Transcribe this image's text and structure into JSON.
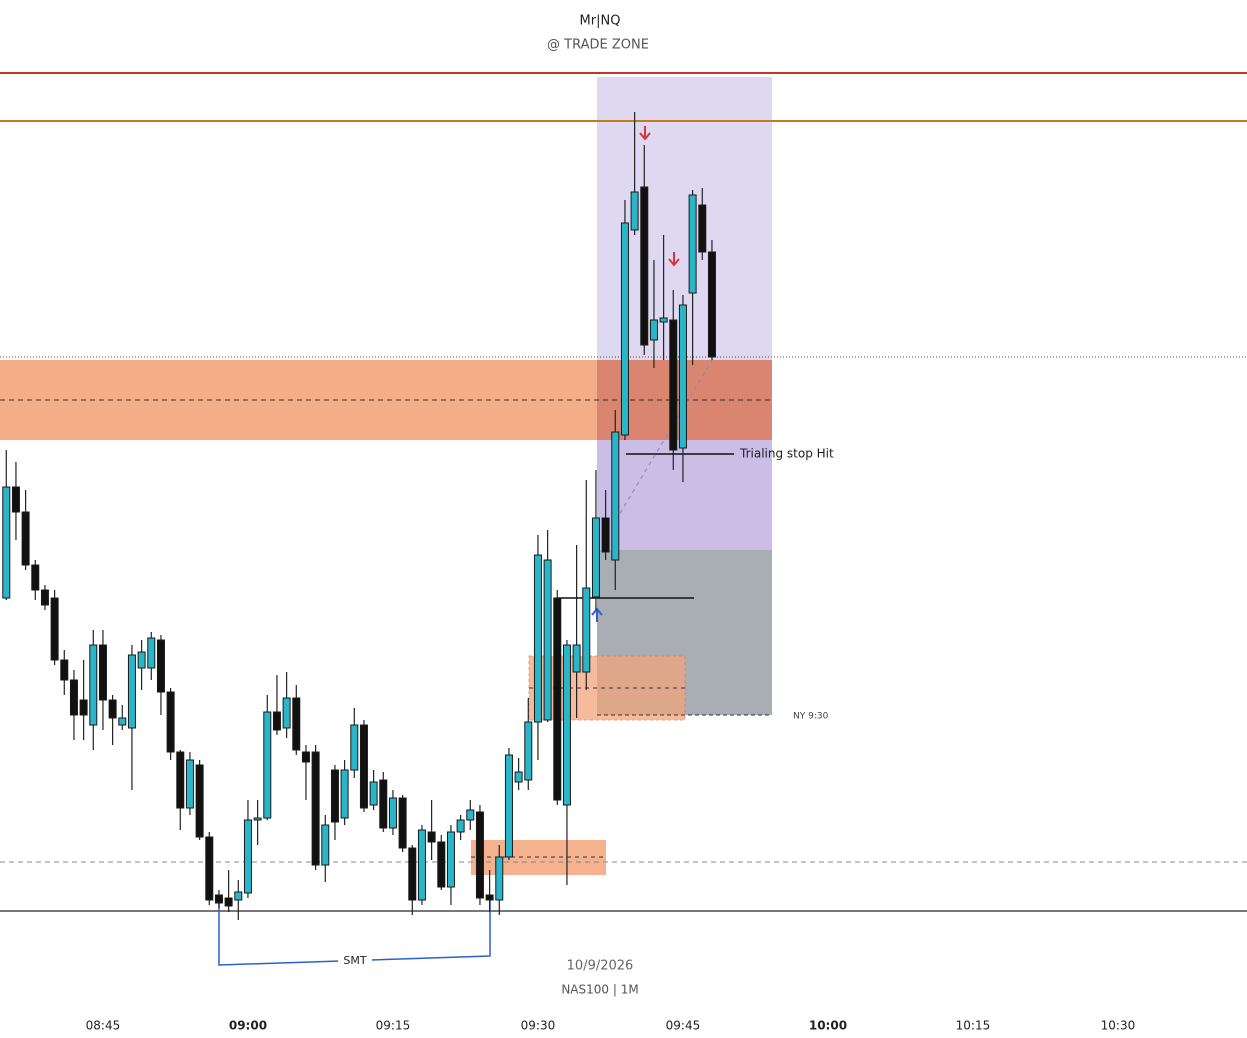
{
  "chart_data": {
    "type": "candlestick",
    "title": "Mr|NQ",
    "subtitle": "@ TRADE ZONE",
    "watermark": "10/9/2026",
    "symbol": "NAS100 | 1M",
    "annotations": [
      "Trialing stop Hit",
      "NY 9:30",
      "SMT"
    ],
    "up_color": "#2bb5c8",
    "down_color": "#111111",
    "xlim": [
      514.35,
      643.35
    ],
    "xticks": [
      {
        "value": 525,
        "label": "08:45"
      },
      {
        "value": 540,
        "label": "09:00"
      },
      {
        "value": 555,
        "label": "09:15"
      },
      {
        "value": 570,
        "label": "09:30"
      },
      {
        "value": 585,
        "label": "09:45"
      },
      {
        "value": 600,
        "label": "10:00"
      },
      {
        "value": 615,
        "label": "10:15"
      },
      {
        "value": 630,
        "label": "10:30"
      }
    ],
    "ylim": [
      0,
      1038
    ],
    "x": [
      515,
      516,
      517,
      518,
      519,
      520,
      521,
      522,
      523,
      524,
      525,
      526,
      527,
      528,
      529,
      530,
      531,
      532,
      533,
      534,
      535,
      536,
      537,
      538,
      539,
      540,
      541,
      542,
      543,
      544,
      545,
      546,
      547,
      548,
      549,
      550,
      551,
      552,
      553,
      554,
      555,
      556,
      557,
      558,
      559,
      560,
      561,
      562,
      563,
      564,
      565,
      566,
      567,
      568,
      569,
      570,
      571,
      572,
      573,
      574,
      575,
      576,
      577,
      578,
      579,
      580,
      581,
      582,
      583,
      584,
      585,
      586,
      587,
      588
    ],
    "open": [
      440,
      551,
      526,
      473,
      448,
      440,
      378,
      358,
      338,
      313,
      393,
      338,
      313,
      310,
      370,
      370,
      398,
      346,
      286,
      230,
      273,
      201,
      143,
      140,
      138,
      145,
      218,
      220,
      326,
      310,
      340,
      286,
      286,
      173,
      268,
      220,
      268,
      313,
      233,
      258,
      210,
      240,
      190,
      138,
      206,
      196,
      151,
      206,
      218,
      226,
      143,
      138,
      181,
      256,
      258,
      316,
      318,
      440,
      233,
      366,
      366,
      441,
      520,
      478,
      603,
      808,
      851,
      698,
      716,
      718,
      590,
      745,
      833,
      786
    ],
    "high": [
      588,
      576,
      548,
      478,
      453,
      448,
      388,
      368,
      378,
      408,
      408,
      343,
      333,
      393,
      398,
      406,
      403,
      350,
      288,
      286,
      278,
      206,
      148,
      168,
      158,
      238,
      238,
      343,
      363,
      366,
      353,
      293,
      293,
      223,
      273,
      278,
      330,
      318,
      268,
      266,
      248,
      243,
      193,
      213,
      238,
      203,
      213,
      223,
      238,
      233,
      168,
      193,
      290,
      280,
      340,
      503,
      508,
      448,
      398,
      493,
      558,
      568,
      548,
      628,
      838,
      926,
      893,
      778,
      803,
      748,
      743,
      848,
      850,
      798
    ],
    "low": [
      438,
      498,
      468,
      438,
      428,
      373,
      343,
      298,
      298,
      288,
      308,
      293,
      308,
      248,
      348,
      358,
      323,
      278,
      208,
      223,
      198,
      133,
      130,
      126,
      118,
      140,
      193,
      218,
      303,
      300,
      283,
      238,
      168,
      156,
      198,
      213,
      260,
      226,
      228,
      206,
      203,
      186,
      123,
      133,
      178,
      148,
      133,
      198,
      208,
      133,
      126,
      123,
      178,
      248,
      248,
      278,
      316,
      233,
      153,
      320,
      348,
      428,
      478,
      448,
      598,
      803,
      683,
      670,
      678,
      568,
      556,
      673,
      778,
      678
    ],
    "close": [
      551,
      526,
      473,
      448,
      433,
      378,
      358,
      323,
      323,
      393,
      338,
      320,
      320,
      383,
      386,
      400,
      346,
      286,
      230,
      278,
      201,
      138,
      135,
      132,
      146,
      218,
      220,
      326,
      308,
      340,
      288,
      276,
      173,
      213,
      216,
      268,
      313,
      230,
      256,
      210,
      240,
      190,
      138,
      208,
      196,
      151,
      206,
      218,
      228,
      140,
      138,
      181,
      283,
      266,
      316,
      483,
      478,
      238,
      393,
      393,
      450,
      520,
      486,
      606,
      815,
      846,
      693,
      718,
      720,
      588,
      733,
      843,
      786,
      681
    ]
  }
}
